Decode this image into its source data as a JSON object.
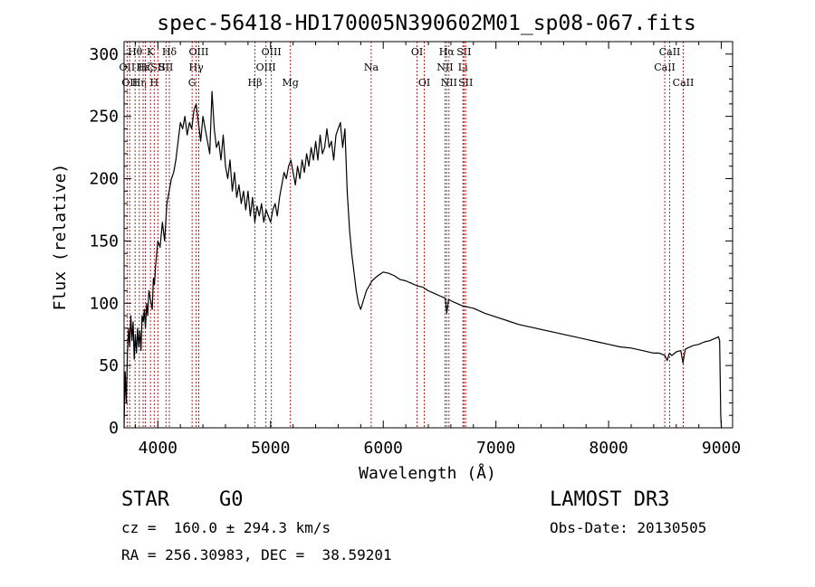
{
  "chart_data": {
    "type": "line",
    "title": "spec-56418-HD170005N390602M01_sp08-067.fits",
    "xlabel": "Wavelength (Å)",
    "ylabel": "Flux (relative)",
    "xlim": [
      3700,
      9100
    ],
    "ylim": [
      0,
      310
    ],
    "xticks": [
      4000,
      5000,
      6000,
      7000,
      8000,
      9000
    ],
    "yticks": [
      0,
      50,
      100,
      150,
      200,
      250,
      300
    ],
    "grid": false,
    "line_color": "#000000",
    "marker_color": "#b22222",
    "series": [
      {
        "x": [
          3700,
          3710,
          3720,
          3730,
          3740,
          3750,
          3760,
          3770,
          3780,
          3790,
          3800,
          3810,
          3820,
          3830,
          3840,
          3850,
          3860,
          3870,
          3880,
          3890,
          3900,
          3910,
          3920,
          3930,
          3940,
          3950,
          3960,
          3970,
          3980,
          3990,
          4000,
          4020,
          4040,
          4060,
          4080,
          4100,
          4120,
          4140,
          4160,
          4180,
          4200,
          4220,
          4240,
          4260,
          4280,
          4300,
          4320,
          4340,
          4360,
          4380,
          4400,
          4420,
          4440,
          4460,
          4480,
          4500,
          4520,
          4540,
          4560,
          4580,
          4600,
          4620,
          4640,
          4660,
          4680,
          4700,
          4720,
          4740,
          4760,
          4780,
          4800,
          4820,
          4840,
          4860,
          4880,
          4900,
          4920,
          4940,
          4960,
          4980,
          5000,
          5020,
          5040,
          5060,
          5080,
          5100,
          5120,
          5140,
          5160,
          5180,
          5200,
          5220,
          5240,
          5260,
          5280,
          5300,
          5320,
          5340,
          5360,
          5380,
          5400,
          5420,
          5440,
          5460,
          5480,
          5500,
          5520,
          5540,
          5560,
          5580,
          5600,
          5620,
          5640,
          5660,
          5680,
          5700,
          5720,
          5740,
          5760,
          5780,
          5800,
          5850,
          5900,
          5950,
          6000,
          6050,
          6100,
          6150,
          6200,
          6250,
          6300,
          6350,
          6400,
          6450,
          6500,
          6550,
          6563,
          6580,
          6600,
          6650,
          6700,
          6750,
          6800,
          6900,
          7000,
          7100,
          7200,
          7300,
          7400,
          7500,
          7600,
          7700,
          7800,
          7900,
          8000,
          8100,
          8200,
          8300,
          8400,
          8450,
          8500,
          8520,
          8540,
          8560,
          8600,
          8640,
          8660,
          8680,
          8700,
          8750,
          8800,
          8850,
          8900,
          8950,
          8975,
          8985,
          8990,
          8995,
          9000
        ],
        "y": [
          0,
          45,
          20,
          60,
          80,
          65,
          90,
          70,
          85,
          55,
          75,
          60,
          80,
          65,
          78,
          62,
          90,
          85,
          95,
          80,
          100,
          90,
          110,
          105,
          100,
          95,
          120,
          115,
          130,
          140,
          150,
          145,
          165,
          150,
          180,
          190,
          200,
          205,
          215,
          230,
          245,
          240,
          250,
          235,
          245,
          240,
          255,
          260,
          245,
          230,
          250,
          240,
          230,
          220,
          270,
          240,
          225,
          230,
          215,
          235,
          210,
          200,
          215,
          190,
          205,
          185,
          195,
          180,
          190,
          175,
          190,
          170,
          185,
          165,
          178,
          170,
          180,
          165,
          175,
          170,
          165,
          175,
          180,
          170,
          185,
          195,
          205,
          200,
          210,
          215,
          205,
          195,
          210,
          200,
          215,
          205,
          220,
          210,
          225,
          215,
          230,
          215,
          235,
          220,
          225,
          240,
          225,
          230,
          215,
          235,
          240,
          245,
          225,
          240,
          190,
          160,
          140,
          125,
          110,
          100,
          95,
          110,
          118,
          122,
          125,
          124,
          122,
          119,
          118,
          116,
          114,
          113,
          110,
          108,
          106,
          104,
          92,
          103,
          102,
          100,
          98,
          97,
          96,
          92,
          89,
          86,
          83,
          81,
          79,
          77,
          75,
          73,
          71,
          69,
          67,
          65,
          64,
          62,
          60,
          60,
          58,
          54,
          60,
          58,
          61,
          62,
          52,
          63,
          64,
          66,
          67,
          69,
          70,
          72,
          73,
          70,
          40,
          10,
          0
        ]
      }
    ],
    "line_markers": [
      {
        "x": 3727,
        "label": "OII",
        "row": 1
      },
      {
        "x": 3750,
        "label": "OII",
        "row": 2
      },
      {
        "x": 3798,
        "label": "Hθ",
        "row": 0
      },
      {
        "x": 3835,
        "label": "Hη",
        "row": 2
      },
      {
        "x": 3869,
        "label": "Hε",
        "row": 1
      },
      {
        "x": 3889,
        "label": "Hζ",
        "row": 1
      },
      {
        "x": 3934,
        "label": "K",
        "row": 0
      },
      {
        "x": 3968,
        "label": "H",
        "row": 2
      },
      {
        "x": 4000,
        "label": "SII",
        "row": 1
      },
      {
        "x": 4072,
        "label": "SII",
        "row": 1
      },
      {
        "x": 4102,
        "label": "Hδ",
        "row": 0
      },
      {
        "x": 4304,
        "label": "G",
        "row": 2
      },
      {
        "x": 4340,
        "label": "Hγ",
        "row": 1
      },
      {
        "x": 4363,
        "label": "OIII",
        "row": 0
      },
      {
        "x": 4861,
        "label": "Hβ",
        "row": 2
      },
      {
        "x": 4959,
        "label": "OIII",
        "row": 1
      },
      {
        "x": 5007,
        "label": "OIII",
        "row": 0
      },
      {
        "x": 5176,
        "label": "Mg",
        "row": 2
      },
      {
        "x": 5893,
        "label": "Na",
        "row": 1
      },
      {
        "x": 6300,
        "label": "OI",
        "row": 0
      },
      {
        "x": 6364,
        "label": "OI",
        "row": 2
      },
      {
        "x": 6548,
        "label": "NII",
        "row": 1
      },
      {
        "x": 6563,
        "label": "Hα",
        "row": 0
      },
      {
        "x": 6583,
        "label": "NII",
        "row": 2
      },
      {
        "x": 6707,
        "label": "Li",
        "row": 1
      },
      {
        "x": 6716,
        "label": "SII",
        "row": 0
      },
      {
        "x": 6731,
        "label": "SII",
        "row": 2
      },
      {
        "x": 8498,
        "label": "CaII",
        "row": 1
      },
      {
        "x": 8542,
        "label": "CaII",
        "row": 0
      },
      {
        "x": 8662,
        "label": "CaII",
        "row": 2
      }
    ]
  },
  "info": {
    "object_class": "STAR",
    "subclass": "G0",
    "survey": "LAMOST DR3",
    "velocity": "cz =  160.0 ± 294.3 km/s",
    "obs_date": "Obs-Date: 20130505",
    "coords": "RA = 256.30983, DEC =  38.59201"
  }
}
